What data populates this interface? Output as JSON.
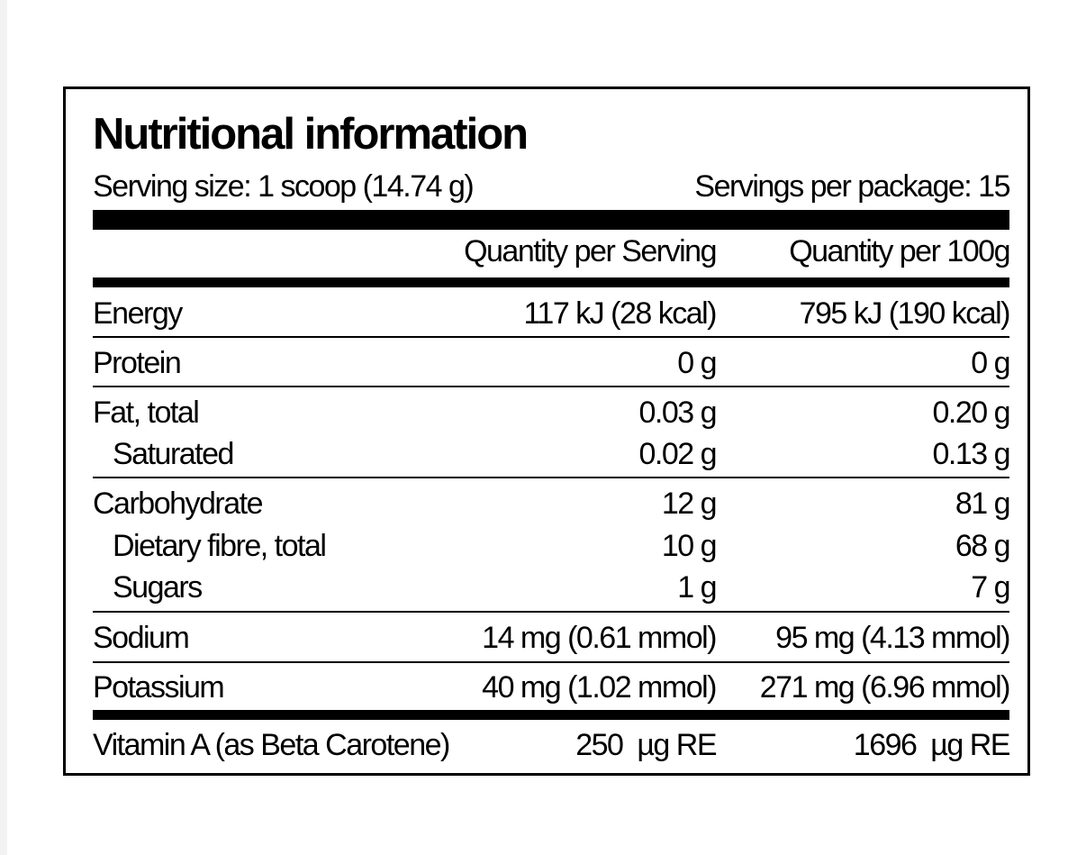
{
  "panel": {
    "title": "Nutritional information",
    "serving_size": "Serving size: 1 scoop (14.74 g)",
    "servings_per_package": "Servings per package: 15",
    "columns": {
      "per_serving": "Quantity per Serving",
      "per_100g": "Quantity per 100g"
    },
    "rows": [
      {
        "label": "Energy",
        "per_serving": "117 kJ (28 kcal)",
        "per_100g": "795 kJ (190 kcal)"
      },
      {
        "label": "Protein",
        "per_serving": "0 g",
        "per_100g": "0 g"
      },
      {
        "label": "Fat, total",
        "per_serving": "0.03 g",
        "per_100g": "0.20 g"
      },
      {
        "label": "Saturated",
        "per_serving": "0.02 g",
        "per_100g": "0.13 g"
      },
      {
        "label": "Carbohydrate",
        "per_serving": "12 g",
        "per_100g": "81 g"
      },
      {
        "label": "Dietary fibre, total",
        "per_serving": "10 g",
        "per_100g": "68 g"
      },
      {
        "label": "Sugars",
        "per_serving": "1 g",
        "per_100g": "7 g"
      },
      {
        "label": "Sodium",
        "per_serving": "14 mg (0.61 mmol)",
        "per_100g": "95 mg (4.13 mmol)"
      },
      {
        "label": "Potassium",
        "per_serving": "40 mg (1.02 mmol)",
        "per_100g": "271 mg (6.96 mmol)"
      },
      {
        "label": "Vitamin A (as Beta Carotene)",
        "per_serving": "250  µg RE",
        "per_100g": "1696  µg RE"
      }
    ]
  }
}
